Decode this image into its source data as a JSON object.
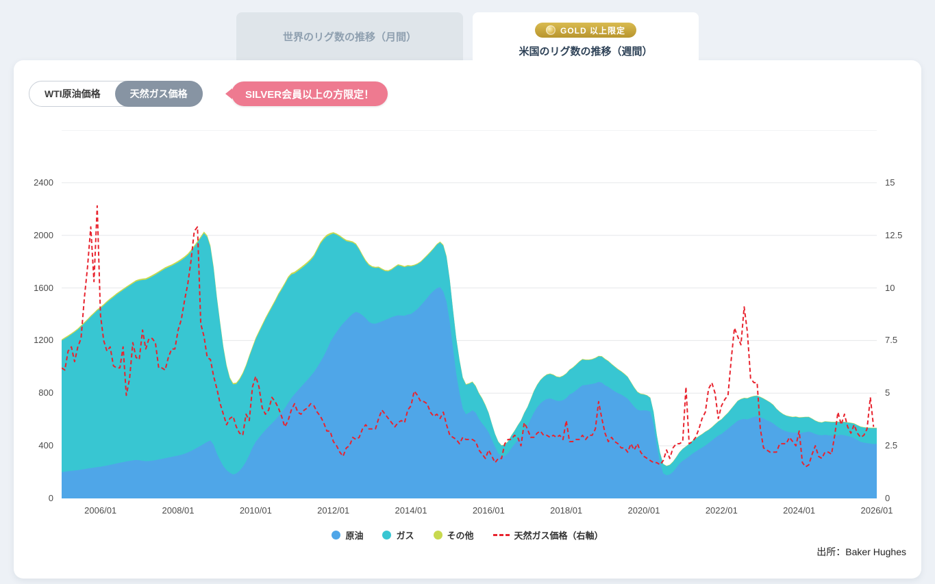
{
  "tabs": {
    "inactive": {
      "label": "世界のリグ数の推移（月間）"
    },
    "active": {
      "badge": "GOLD 以上限定",
      "label": "米国のリグ数の推移（週間）"
    }
  },
  "controls": {
    "toggle": [
      {
        "label": "WTI原油価格",
        "active": false
      },
      {
        "label": "天然ガス価格",
        "active": true
      }
    ],
    "callout": "SILVER会員以上の方限定！"
  },
  "source": "出所：Baker Hughes",
  "chart_data": {
    "type": "area",
    "stacked": true,
    "title": "米国のリグ数の推移（週間）",
    "x_start": "2005/01",
    "x_interval": "monthly",
    "x_total_months": 252,
    "left_axis": {
      "ticks": [
        0,
        400,
        800,
        1200,
        1600,
        2000,
        2400
      ],
      "max": 2800
    },
    "right_axis": {
      "ticks": [
        0,
        2.5,
        5,
        7.5,
        10,
        12.5,
        15
      ],
      "max": 17.5
    },
    "x_ticks": [
      {
        "label": "2006/01",
        "month_index": 12
      },
      {
        "label": "2008/01",
        "month_index": 36
      },
      {
        "label": "2010/01",
        "month_index": 60
      },
      {
        "label": "2012/01",
        "month_index": 84
      },
      {
        "label": "2014/01",
        "month_index": 108
      },
      {
        "label": "2016/01",
        "month_index": 132
      },
      {
        "label": "2018/01",
        "month_index": 156
      },
      {
        "label": "2020/01",
        "month_index": 180
      },
      {
        "label": "2022/01",
        "month_index": 204
      },
      {
        "label": "2024/01",
        "month_index": 228
      },
      {
        "label": "2026/01",
        "month_index": 252
      }
    ],
    "legend": [
      {
        "label": "原油",
        "swatch": "dot",
        "color": "#4fa6e8"
      },
      {
        "label": "ガス",
        "swatch": "dot",
        "color": "#38c6d2"
      },
      {
        "label": "その他",
        "swatch": "dot",
        "color": "#c8d94f"
      },
      {
        "label": "天然ガス価格（右軸）",
        "swatch": "dash",
        "color": "#e8232e"
      }
    ],
    "series": [
      {
        "name": "原油",
        "type": "area",
        "axis": "left",
        "color": "#4fa6e8",
        "values": [
          200,
          203,
          206,
          209,
          212,
          215,
          219,
          223,
          227,
          231,
          234,
          238,
          241,
          245,
          250,
          255,
          260,
          266,
          271,
          276,
          281,
          285,
          289,
          293,
          290,
          286,
          283,
          284,
          287,
          291,
          296,
          301,
          306,
          311,
          316,
          321,
          326,
          332,
          340,
          349,
          360,
          373,
          387,
          401,
          416,
          430,
          441,
          408,
          340,
          290,
          245,
          215,
          195,
          182,
          190,
          210,
          240,
          280,
          330,
          385,
          430,
          462,
          492,
          520,
          546,
          570,
          596,
          624,
          654,
          686,
          724,
          764,
          792,
          820,
          848,
          876,
          902,
          930,
          960,
          998,
          1038,
          1080,
          1130,
          1186,
          1228,
          1266,
          1300,
          1330,
          1356,
          1382,
          1404,
          1418,
          1410,
          1392,
          1370,
          1342,
          1330,
          1328,
          1336,
          1346,
          1356,
          1366,
          1378,
          1386,
          1392,
          1390,
          1388,
          1398,
          1402,
          1420,
          1440,
          1466,
          1494,
          1524,
          1554,
          1578,
          1598,
          1606,
          1572,
          1496,
          1340,
          1140,
          948,
          802,
          684,
          640,
          652,
          670,
          652,
          604,
          570,
          540,
          502,
          446,
          392,
          342,
          320,
          322,
          342,
          380,
          412,
          444,
          474,
          522,
          552,
          602,
          652,
          692,
          722,
          742,
          756,
          760,
          752,
          742,
          740,
          747,
          762,
          790,
          802,
          820,
          842,
          860,
          862,
          866,
          870,
          876,
          886,
          880,
          860,
          848,
          830,
          814,
          800,
          790,
          774,
          758,
          728,
          698,
          674,
          668,
          670,
          668,
          660,
          562,
          400,
          270,
          190,
          176,
          182,
          202,
          232,
          264,
          286,
          302,
          320,
          340,
          356,
          372,
          386,
          402,
          420,
          440,
          460,
          478,
          490,
          510,
          530,
          550,
          570,
          590,
          600,
          604,
          600,
          610,
          620,
          624,
          618,
          608,
          594,
          584,
          570,
          550,
          534,
          520,
          510,
          504,
          500,
          500,
          496,
          500,
          504,
          508,
          500,
          490,
          482,
          480,
          484,
          480,
          478,
          478,
          480,
          484,
          480,
          474,
          468,
          458,
          444,
          430,
          424,
          420,
          417,
          414
        ]
      },
      {
        "name": "ガス",
        "type": "area",
        "axis": "left",
        "color": "#38c6d2",
        "values": [
          1000,
          1012,
          1024,
          1038,
          1052,
          1068,
          1088,
          1108,
          1128,
          1150,
          1170,
          1190,
          1205,
          1222,
          1240,
          1256,
          1270,
          1284,
          1296,
          1308,
          1320,
          1332,
          1344,
          1356,
          1366,
          1374,
          1380,
          1390,
          1400,
          1410,
          1420,
          1430,
          1440,
          1446,
          1452,
          1460,
          1468,
          1478,
          1488,
          1500,
          1518,
          1538,
          1558,
          1580,
          1600,
          1558,
          1470,
          1340,
          1180,
          1040,
          900,
          790,
          715,
          685,
          680,
          692,
          706,
          726,
          748,
          760,
          780,
          800,
          820,
          842,
          862,
          882,
          902,
          922,
          932,
          942,
          950,
          938,
          918,
          908,
          898,
          890,
          884,
          880,
          880,
          890,
          898,
          888,
          862,
          818,
          786,
          738,
          690,
          642,
          600,
          568,
          540,
          510,
          480,
          452,
          432,
          430,
          428,
          424,
          418,
          394,
          372,
          360,
          360,
          370,
          380,
          376,
          370,
          368,
          362,
          350,
          340,
          330,
          326,
          320,
          316,
          320,
          330,
          340,
          350,
          340,
          318,
          290,
          268,
          250,
          232,
          224,
          220,
          214,
          200,
          194,
          188,
          168,
          148,
          120,
          96,
          88,
          82,
          86,
          90,
          96,
          100,
          110,
          118,
          126,
          140,
          150,
          162,
          170,
          176,
          180,
          184,
          186,
          186,
          182,
          180,
          183,
          186,
          186,
          190,
          194,
          196,
          196,
          190,
          186,
          186,
          190,
          194,
          198,
          198,
          194,
          190,
          186,
          180,
          174,
          170,
          164,
          154,
          144,
          134,
          125,
          120,
          114,
          104,
          94,
          80,
          76,
          70,
          70,
          72,
          76,
          80,
          85,
          90,
          92,
          94,
          96,
          98,
          100,
          102,
          104,
          100,
          100,
          102,
          106,
          110,
          116,
          120,
          130,
          140,
          150,
          154,
          158,
          160,
          160,
          157,
          155,
          152,
          150,
          150,
          145,
          140,
          130,
          124,
          120,
          118,
          118,
          118,
          120,
          118,
          116,
          114,
          110,
          105,
          100,
          98,
          96,
          100,
          102,
          102,
          102,
          100,
          100,
          100,
          102,
          105,
          110,
          112,
          114,
          115,
          116,
          118,
          120
        ]
      },
      {
        "name": "その他",
        "type": "area",
        "axis": "left",
        "color": "#c8d94f",
        "values": [
          9,
          9,
          9,
          9,
          9,
          9,
          9,
          9,
          9,
          9,
          9,
          9,
          10,
          10,
          10,
          10,
          10,
          10,
          10,
          10,
          10,
          10,
          10,
          10,
          11,
          11,
          11,
          11,
          11,
          11,
          11,
          11,
          11,
          11,
          11,
          11,
          12,
          12,
          12,
          12,
          12,
          12,
          12,
          12,
          12,
          12,
          12,
          12,
          10,
          10,
          10,
          10,
          10,
          10,
          10,
          10,
          10,
          10,
          10,
          10,
          12,
          12,
          12,
          12,
          12,
          12,
          12,
          12,
          12,
          12,
          12,
          12,
          13,
          13,
          13,
          13,
          13,
          13,
          13,
          13,
          13,
          13,
          13,
          13,
          10,
          10,
          10,
          10,
          10,
          10,
          10,
          10,
          10,
          10,
          10,
          10,
          8,
          8,
          8,
          8,
          8,
          8,
          8,
          8,
          8,
          8,
          8,
          8,
          7,
          7,
          7,
          7,
          7,
          7,
          7,
          7,
          7,
          7,
          7,
          7,
          5,
          5,
          5,
          5,
          5,
          5,
          5,
          5,
          5,
          5,
          5,
          5,
          3,
          3,
          3,
          3,
          3,
          3,
          3,
          3,
          3,
          3,
          3,
          3,
          4,
          4,
          4,
          4,
          4,
          4,
          4,
          4,
          4,
          4,
          4,
          4,
          4,
          4,
          4,
          4,
          4,
          4,
          4,
          4,
          4,
          4,
          4,
          4,
          4,
          4,
          4,
          4,
          4,
          4,
          4,
          4,
          4,
          4,
          4,
          4,
          3,
          3,
          3,
          3,
          3,
          3,
          3,
          3,
          3,
          3,
          3,
          3,
          3,
          3,
          3,
          3,
          3,
          3,
          3,
          3,
          3,
          3,
          3,
          3,
          3,
          3,
          3,
          3,
          3,
          3,
          3,
          3,
          3,
          3,
          3,
          3,
          3,
          3,
          3,
          3,
          3,
          3,
          3,
          3,
          3,
          3,
          3,
          3,
          3,
          3,
          3,
          3,
          3,
          3,
          3,
          3,
          3,
          3,
          3,
          3,
          3,
          3,
          3,
          3,
          3,
          3,
          3,
          3,
          3,
          3,
          3,
          3
        ]
      },
      {
        "name": "天然ガス価格（右軸）",
        "type": "line",
        "dashed": true,
        "axis": "right",
        "color": "#e8232e",
        "values": [
          6.2,
          6.1,
          7.0,
          7.2,
          6.5,
          7.2,
          7.6,
          9.5,
          11.0,
          12.9,
          10.3,
          13.9,
          8.7,
          7.5,
          7.0,
          7.2,
          6.3,
          6.2,
          6.2,
          7.2,
          4.9,
          5.7,
          7.4,
          6.7,
          6.6,
          8.0,
          7.1,
          7.6,
          7.6,
          7.4,
          6.2,
          6.2,
          6.1,
          6.7,
          7.1,
          7.1,
          8.0,
          8.5,
          9.4,
          10.2,
          11.3,
          12.7,
          12.9,
          8.3,
          7.7,
          6.7,
          6.6,
          5.8,
          5.2,
          4.5,
          4.0,
          3.5,
          3.8,
          3.9,
          3.4,
          3.1,
          3.0,
          4.0,
          3.7,
          5.3,
          5.8,
          5.3,
          4.3,
          4.0,
          4.2,
          4.8,
          4.6,
          4.3,
          3.9,
          3.4,
          3.7,
          4.2,
          4.5,
          4.1,
          4.0,
          4.2,
          4.3,
          4.5,
          4.4,
          4.1,
          3.9,
          3.6,
          3.2,
          3.2,
          2.7,
          2.5,
          2.2,
          2.0,
          2.4,
          2.5,
          2.9,
          2.8,
          2.9,
          3.3,
          3.5,
          3.3,
          3.3,
          3.3,
          3.8,
          4.2,
          4.0,
          3.8,
          3.6,
          3.4,
          3.6,
          3.7,
          3.6,
          4.2,
          4.4,
          5.1,
          4.9,
          4.6,
          4.6,
          4.5,
          4.1,
          3.9,
          4.0,
          3.8,
          4.1,
          3.5,
          3.0,
          2.9,
          2.8,
          2.6,
          2.9,
          2.8,
          2.8,
          2.8,
          2.7,
          2.3,
          2.1,
          1.9,
          2.3,
          2.0,
          1.7,
          1.9,
          1.9,
          2.6,
          2.8,
          2.8,
          3.0,
          2.9,
          2.5,
          3.6,
          3.3,
          2.9,
          2.9,
          3.1,
          3.2,
          3.0,
          3.0,
          2.9,
          3.0,
          2.9,
          3.0,
          2.8,
          3.7,
          2.7,
          2.7,
          2.8,
          2.8,
          3.0,
          2.8,
          3.0,
          3.0,
          3.3,
          4.6,
          3.8,
          3.1,
          2.7,
          2.9,
          2.7,
          2.6,
          2.4,
          2.4,
          2.2,
          2.6,
          2.3,
          2.6,
          2.2,
          2.0,
          1.9,
          1.8,
          1.7,
          1.7,
          1.6,
          1.8,
          2.3,
          1.9,
          2.4,
          2.6,
          2.6,
          2.7,
          5.3,
          2.6,
          2.7,
          2.9,
          3.3,
          3.8,
          4.1,
          5.2,
          5.5,
          5.0,
          3.8,
          4.4,
          4.7,
          4.9,
          6.6,
          8.1,
          7.7,
          7.3,
          9.1,
          7.9,
          5.7,
          5.5,
          5.5,
          3.3,
          2.4,
          2.3,
          2.2,
          2.2,
          2.2,
          2.6,
          2.6,
          2.6,
          2.9,
          2.7,
          2.5,
          3.2,
          1.7,
          1.5,
          1.6,
          2.1,
          2.5,
          2.0,
          1.9,
          2.2,
          2.2,
          2.1,
          3.0,
          4.1,
          3.5,
          4.0,
          3.4,
          3.1,
          3.5,
          3.1,
          2.9,
          3.0,
          3.3,
          4.8,
          3.4
        ]
      }
    ]
  }
}
